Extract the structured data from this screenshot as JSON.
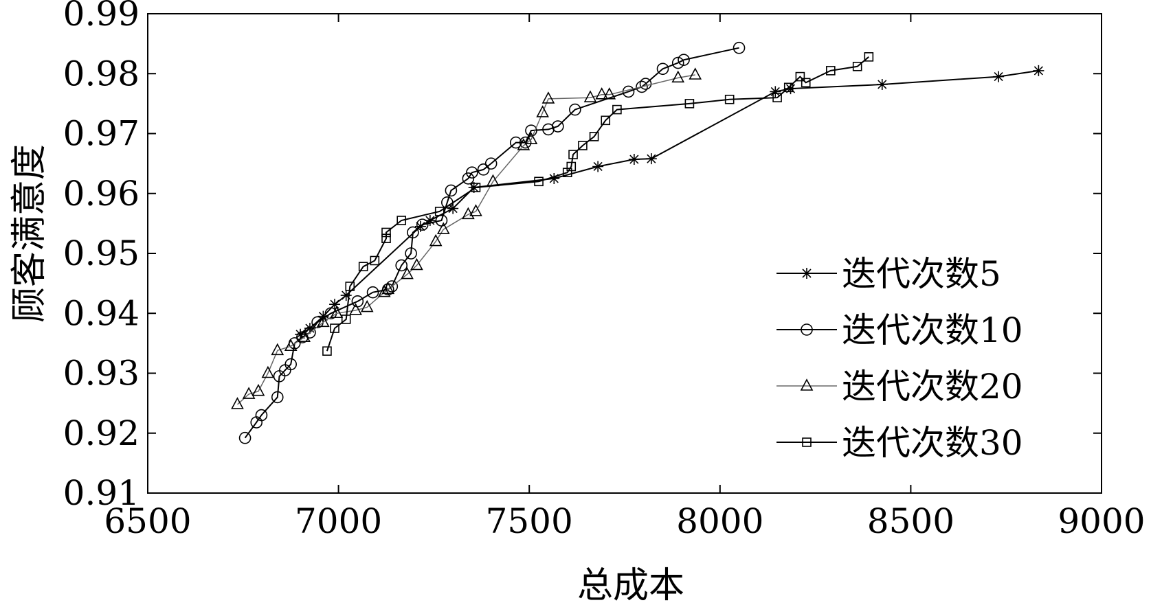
{
  "chart_data": {
    "type": "line",
    "title": "",
    "xlabel": "总成本",
    "ylabel": "顾客满意度",
    "xlim": [
      6500,
      9000
    ],
    "ylim": [
      0.91,
      0.99
    ],
    "xticks": [
      "6500",
      "7000",
      "7500",
      "8000",
      "8500",
      "9000"
    ],
    "yticks": [
      "0.91",
      "0.92",
      "0.93",
      "0.94",
      "0.95",
      "0.96",
      "0.97",
      "0.98",
      "0.99"
    ],
    "grid": false,
    "legend_position": "bottom-right",
    "series": [
      {
        "name": "迭代次数5",
        "marker": "star",
        "x": [
          6900,
          6925,
          6960,
          6990,
          7020,
          7215,
          7240,
          7300,
          7355,
          7565,
          7680,
          7775,
          7820,
          8145,
          8185,
          8425,
          8730,
          8835
        ],
        "y": [
          0.9365,
          0.9375,
          0.9395,
          0.9415,
          0.943,
          0.9545,
          0.9555,
          0.9575,
          0.961,
          0.9625,
          0.9645,
          0.9657,
          0.9658,
          0.977,
          0.9775,
          0.9782,
          0.9795,
          0.9805
        ]
      },
      {
        "name": "迭代次数10",
        "marker": "circle",
        "x": [
          6755,
          6785,
          6798,
          6840,
          6845,
          6860,
          6875,
          6885,
          6905,
          6925,
          6945,
          6980,
          7050,
          7090,
          7130,
          7140,
          7165,
          7190,
          7195,
          7220,
          7270,
          7285,
          7295,
          7340,
          7350,
          7380,
          7400,
          7465,
          7490,
          7505,
          7550,
          7575,
          7620,
          7760,
          7795,
          7805,
          7850,
          7890,
          7905,
          8050
        ],
        "y": [
          0.9192,
          0.9218,
          0.923,
          0.926,
          0.9295,
          0.9305,
          0.9315,
          0.935,
          0.936,
          0.9368,
          0.9385,
          0.94,
          0.942,
          0.9435,
          0.944,
          0.9445,
          0.948,
          0.95,
          0.9535,
          0.9548,
          0.9555,
          0.9585,
          0.9605,
          0.9625,
          0.9635,
          0.964,
          0.965,
          0.9685,
          0.9685,
          0.9705,
          0.9707,
          0.9712,
          0.974,
          0.977,
          0.9778,
          0.9783,
          0.9808,
          0.9818,
          0.9823,
          0.9843
        ]
      },
      {
        "name": "迭代次数20",
        "marker": "triangle",
        "x": [
          6735,
          6765,
          6790,
          6815,
          6840,
          6875,
          6910,
          6960,
          6995,
          7045,
          7075,
          7120,
          7130,
          7180,
          7205,
          7255,
          7275,
          7340,
          7360,
          7405,
          7485,
          7505,
          7535,
          7550,
          7660,
          7690,
          7710,
          7890,
          7935
        ],
        "y": [
          0.9248,
          0.9265,
          0.927,
          0.93,
          0.9338,
          0.9345,
          0.936,
          0.9385,
          0.94,
          0.9405,
          0.941,
          0.9435,
          0.944,
          0.9465,
          0.948,
          0.952,
          0.954,
          0.9565,
          0.957,
          0.962,
          0.968,
          0.969,
          0.9735,
          0.9758,
          0.976,
          0.9765,
          0.9765,
          0.9793,
          0.9798
        ]
      },
      {
        "name": "迭代次数30",
        "marker": "square",
        "x": [
          6970,
          6990,
          7020,
          7030,
          7065,
          7095,
          7125,
          7125,
          7165,
          7265,
          7360,
          7525,
          7600,
          7610,
          7615,
          7640,
          7670,
          7700,
          7730,
          7920,
          8025,
          8150,
          8180,
          8210,
          8225,
          8290,
          8360,
          8390
        ],
        "y": [
          0.9337,
          0.9375,
          0.939,
          0.9445,
          0.9478,
          0.9488,
          0.9525,
          0.9535,
          0.9555,
          0.957,
          0.961,
          0.962,
          0.9635,
          0.9645,
          0.9665,
          0.968,
          0.9695,
          0.9722,
          0.974,
          0.975,
          0.9757,
          0.976,
          0.9777,
          0.9795,
          0.9785,
          0.9805,
          0.9812,
          0.9828
        ]
      }
    ]
  }
}
